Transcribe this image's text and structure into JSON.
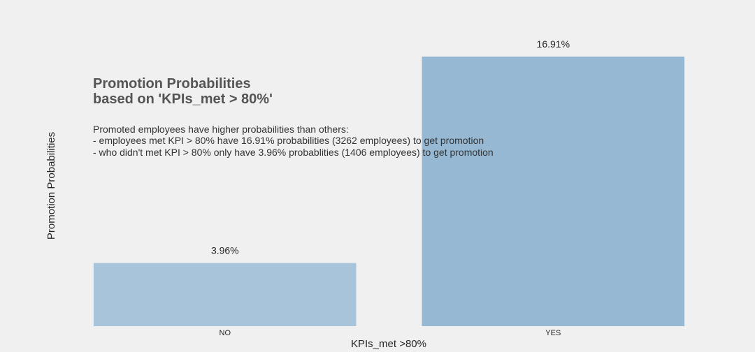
{
  "chart_data": {
    "type": "bar",
    "categories": [
      "NO",
      "YES"
    ],
    "values": [
      3.96,
      16.91
    ],
    "value_labels": [
      "3.96%",
      "16.91%"
    ],
    "bar_colors": [
      "#a7c4da",
      "#96b8d2"
    ],
    "background": "#f0f0f0",
    "title_lines": [
      "Promotion Probabilities",
      "based on 'KPIs_met > 80%'"
    ],
    "annotation_lines": [
      "Promoted employees have higher probabilities than others:",
      "- employees met KPI > 80% have 16.91% probabilities (3262 employees) to get promotion",
      "- who didn't met KPI > 80% only have 3.96% probablities (1406 employees) to get promotion"
    ],
    "xlabel": "KPIs_met >80%",
    "ylabel": "Promotion Probabilities",
    "ylim": [
      0,
      16.91
    ],
    "grid": false,
    "legend": "none"
  }
}
